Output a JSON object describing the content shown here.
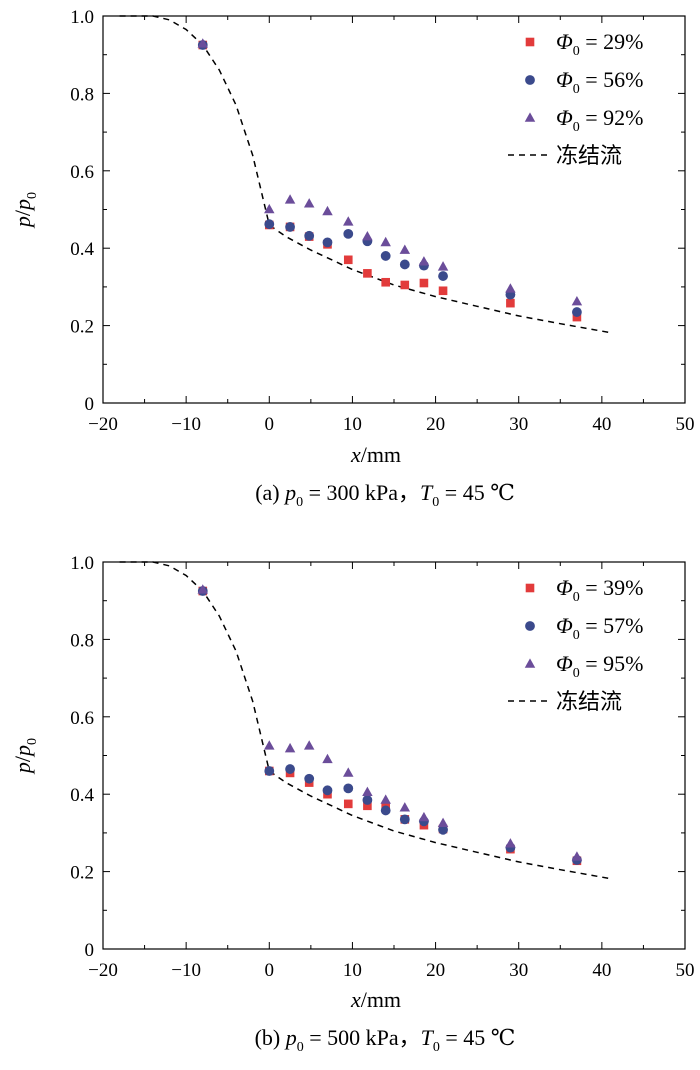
{
  "chart_data": [
    {
      "type": "scatter",
      "panel": "a",
      "caption": {
        "prefix": "(a) ",
        "p0": "p",
        "p0_sub": "0",
        "p0_val": " = 300 kPa，",
        "t0": "T",
        "t0_sub": "0",
        "t0_val": " = 45 ℃"
      },
      "xlabel": {
        "var": "x",
        "unit": "/mm"
      },
      "ylabel": {
        "num": "p",
        "den": "p",
        "den_sub": "0"
      },
      "xlim": [
        -20,
        50
      ],
      "ylim": [
        0,
        1.0
      ],
      "xticks": [
        "−20",
        "−10",
        "0",
        "10",
        "20",
        "30",
        "40",
        "50"
      ],
      "xtick_values": [
        -20,
        -10,
        0,
        10,
        20,
        30,
        40,
        50
      ],
      "yticks": [
        "0",
        "0.2",
        "0.4",
        "0.6",
        "0.8",
        "1.0"
      ],
      "ytick_values": [
        0,
        0.2,
        0.4,
        0.6,
        0.8,
        1.0
      ],
      "series": [
        {
          "name": "Φ0 = 29%",
          "sym": "Φ",
          "sub": "0",
          "val": " = 29%",
          "marker": "square",
          "color": "#e23b3b",
          "x": [
            -8,
            0,
            2.5,
            4.8,
            7,
            9.5,
            11.8,
            14,
            16.3,
            18.6,
            20.9,
            29,
            37
          ],
          "y": [
            0.925,
            0.46,
            0.455,
            0.43,
            0.41,
            0.37,
            0.335,
            0.312,
            0.305,
            0.31,
            0.29,
            0.258,
            0.222
          ]
        },
        {
          "name": "Φ0 = 56%",
          "sym": "Φ",
          "sub": "0",
          "val": " = 56%",
          "marker": "circle",
          "color": "#3b4a8c",
          "x": [
            -8,
            0,
            2.5,
            4.8,
            7,
            9.5,
            11.8,
            14,
            16.3,
            18.6,
            20.9,
            29,
            37
          ],
          "y": [
            0.925,
            0.462,
            0.455,
            0.432,
            0.415,
            0.437,
            0.418,
            0.38,
            0.358,
            0.355,
            0.328,
            0.28,
            0.235
          ]
        },
        {
          "name": "Φ0 = 92%",
          "sym": "Φ",
          "sub": "0",
          "val": " = 92%",
          "marker": "triangle",
          "color": "#6b4d9a",
          "x": [
            -8,
            0,
            2.5,
            4.8,
            7,
            9.5,
            11.8,
            14,
            16.3,
            18.6,
            20.9,
            29,
            37
          ],
          "y": [
            0.928,
            0.5,
            0.525,
            0.515,
            0.495,
            0.468,
            0.43,
            0.415,
            0.395,
            0.365,
            0.352,
            0.295,
            0.262
          ]
        }
      ],
      "reference_line": {
        "name": "冻结流",
        "style": "dashed",
        "x": [
          -18,
          -14,
          -12,
          -10,
          -8,
          -6,
          -4,
          -2,
          -1,
          0,
          2,
          5,
          10,
          15,
          20,
          25,
          30,
          35,
          41
        ],
        "y": [
          1.0,
          1.0,
          0.99,
          0.965,
          0.925,
          0.86,
          0.77,
          0.64,
          0.55,
          0.46,
          0.43,
          0.395,
          0.345,
          0.305,
          0.275,
          0.25,
          0.225,
          0.205,
          0.182
        ]
      }
    },
    {
      "type": "scatter",
      "panel": "b",
      "caption": {
        "prefix": "(b) ",
        "p0": "p",
        "p0_sub": "0",
        "p0_val": " = 500 kPa，",
        "t0": "T",
        "t0_sub": "0",
        "t0_val": " = 45 ℃"
      },
      "xlabel": {
        "var": "x",
        "unit": "/mm"
      },
      "ylabel": {
        "num": "p",
        "den": "p",
        "den_sub": "0"
      },
      "xlim": [
        -20,
        50
      ],
      "ylim": [
        0,
        1.0
      ],
      "xticks": [
        "−20",
        "−10",
        "0",
        "10",
        "20",
        "30",
        "40",
        "50"
      ],
      "xtick_values": [
        -20,
        -10,
        0,
        10,
        20,
        30,
        40,
        50
      ],
      "yticks": [
        "0",
        "0.2",
        "0.4",
        "0.6",
        "0.8",
        "1.0"
      ],
      "ytick_values": [
        0,
        0.2,
        0.4,
        0.6,
        0.8,
        1.0
      ],
      "series": [
        {
          "name": "Φ0 = 39%",
          "sym": "Φ",
          "sub": "0",
          "val": " = 39%",
          "marker": "square",
          "color": "#e23b3b",
          "x": [
            -8,
            0,
            2.5,
            4.8,
            7,
            9.5,
            11.8,
            14,
            16.3,
            18.6,
            20.9,
            29,
            37
          ],
          "y": [
            0.925,
            0.46,
            0.455,
            0.43,
            0.4,
            0.375,
            0.37,
            0.365,
            0.335,
            0.32,
            0.31,
            0.258,
            0.228
          ]
        },
        {
          "name": "Φ0 = 57%",
          "sym": "Φ",
          "sub": "0",
          "val": " = 57%",
          "marker": "circle",
          "color": "#3b4a8c",
          "x": [
            -8,
            0,
            2.5,
            4.8,
            7,
            9.5,
            11.8,
            14,
            16.3,
            18.6,
            20.9,
            29,
            37
          ],
          "y": [
            0.925,
            0.46,
            0.465,
            0.44,
            0.41,
            0.415,
            0.385,
            0.358,
            0.335,
            0.33,
            0.308,
            0.262,
            0.23
          ]
        },
        {
          "name": "Φ0 = 95%",
          "sym": "Φ",
          "sub": "0",
          "val": " = 95%",
          "marker": "triangle",
          "color": "#6b4d9a",
          "x": [
            -8,
            0,
            2.5,
            4.8,
            7,
            9.5,
            11.8,
            14,
            16.3,
            18.6,
            20.9,
            29,
            37
          ],
          "y": [
            0.928,
            0.525,
            0.518,
            0.525,
            0.49,
            0.455,
            0.405,
            0.385,
            0.365,
            0.34,
            0.325,
            0.272,
            0.238
          ]
        }
      ],
      "reference_line": {
        "name": "冻结流",
        "style": "dashed",
        "x": [
          -18,
          -14,
          -12,
          -10,
          -8,
          -6,
          -4,
          -2,
          -1,
          0,
          2,
          5,
          10,
          15,
          20,
          25,
          30,
          35,
          41
        ],
        "y": [
          1.0,
          1.0,
          0.99,
          0.965,
          0.925,
          0.86,
          0.77,
          0.64,
          0.55,
          0.46,
          0.43,
          0.395,
          0.345,
          0.305,
          0.275,
          0.25,
          0.225,
          0.205,
          0.182
        ]
      }
    }
  ]
}
